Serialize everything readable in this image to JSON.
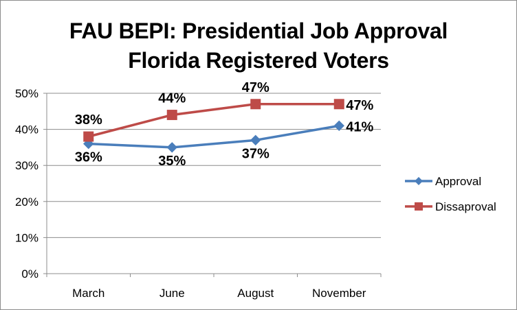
{
  "chart_data": {
    "type": "line",
    "title_lines": [
      "FAU BEPI: Presidential Job Approval",
      "Florida Registered Voters"
    ],
    "categories": [
      "March",
      "June",
      "August",
      "November"
    ],
    "y_ticks": [
      "0%",
      "10%",
      "20%",
      "30%",
      "40%",
      "50%"
    ],
    "ylim": [
      0,
      50
    ],
    "grid": true,
    "legend_position": "right",
    "series": [
      {
        "name": "Approval",
        "values": [
          36,
          35,
          37,
          41
        ],
        "labels": [
          "36%",
          "35%",
          "37%",
          "41%"
        ],
        "color": "#4a7ebb",
        "marker": "diamond"
      },
      {
        "name": "Dissaproval",
        "values": [
          38,
          44,
          47,
          47
        ],
        "labels": [
          "38%",
          "44%",
          "47%",
          "47%"
        ],
        "color": "#be4b48",
        "marker": "square"
      }
    ]
  }
}
